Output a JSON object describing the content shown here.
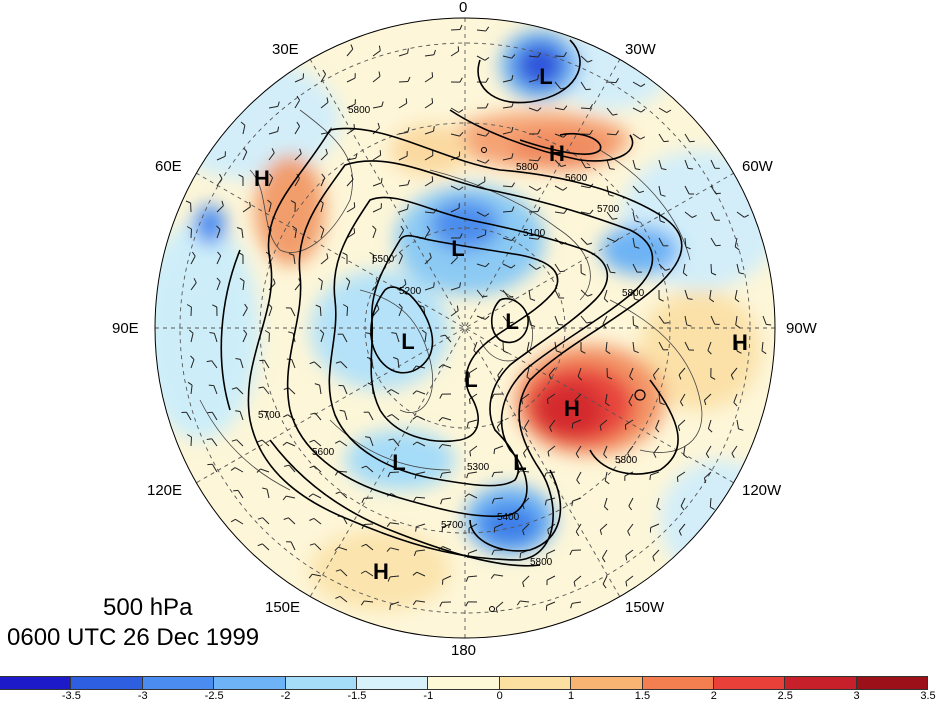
{
  "title": {
    "level": "500 hPa",
    "time": "0600 UTC 26 Dec 1999"
  },
  "longitude_labels": {
    "top": "0",
    "top_right_1": "30W",
    "top_right_2": "60W",
    "right": "90W",
    "bottom_right_1": "120W",
    "bottom_right_2": "150W",
    "bottom": "180",
    "bottom_left_2": "150E",
    "bottom_left_1": "120E",
    "left": "90E",
    "top_left_2": "60E",
    "top_left_1": "30E"
  },
  "pressure_centers": [
    {
      "type": "L",
      "label": "L"
    },
    {
      "type": "H",
      "label": "H"
    },
    {
      "type": "H",
      "label": "H"
    },
    {
      "type": "L",
      "label": "L"
    },
    {
      "type": "L",
      "label": "L"
    },
    {
      "type": "L",
      "label": "L"
    },
    {
      "type": "L",
      "label": "L"
    },
    {
      "type": "H",
      "label": "H"
    },
    {
      "type": "H",
      "label": "H"
    },
    {
      "type": "L",
      "label": "L"
    },
    {
      "type": "L",
      "label": "L"
    },
    {
      "type": "H",
      "label": "H"
    }
  ],
  "contour_labels": [
    "5800",
    "5800",
    "5700",
    "5100",
    "5200",
    "5500",
    "5600",
    "5800",
    "5700",
    "5800",
    "5400",
    "5600",
    "5800",
    "5700",
    "5300"
  ],
  "colorbar": {
    "colors": [
      "#1d1ac9",
      "#2d5fe0",
      "#4a8cf0",
      "#6db3f5",
      "#a5dcf8",
      "#d8f2fb",
      "#fdf8d6",
      "#fbe0a2",
      "#f8b473",
      "#f37e50",
      "#e9403a",
      "#c8202b",
      "#9c1019"
    ],
    "tick_labels": [
      "-3.5",
      "-3",
      "-2.5",
      "-2",
      "-1.5",
      "-1",
      "0",
      "1",
      "1.5",
      "2",
      "2.5",
      "3",
      "3.5"
    ]
  }
}
